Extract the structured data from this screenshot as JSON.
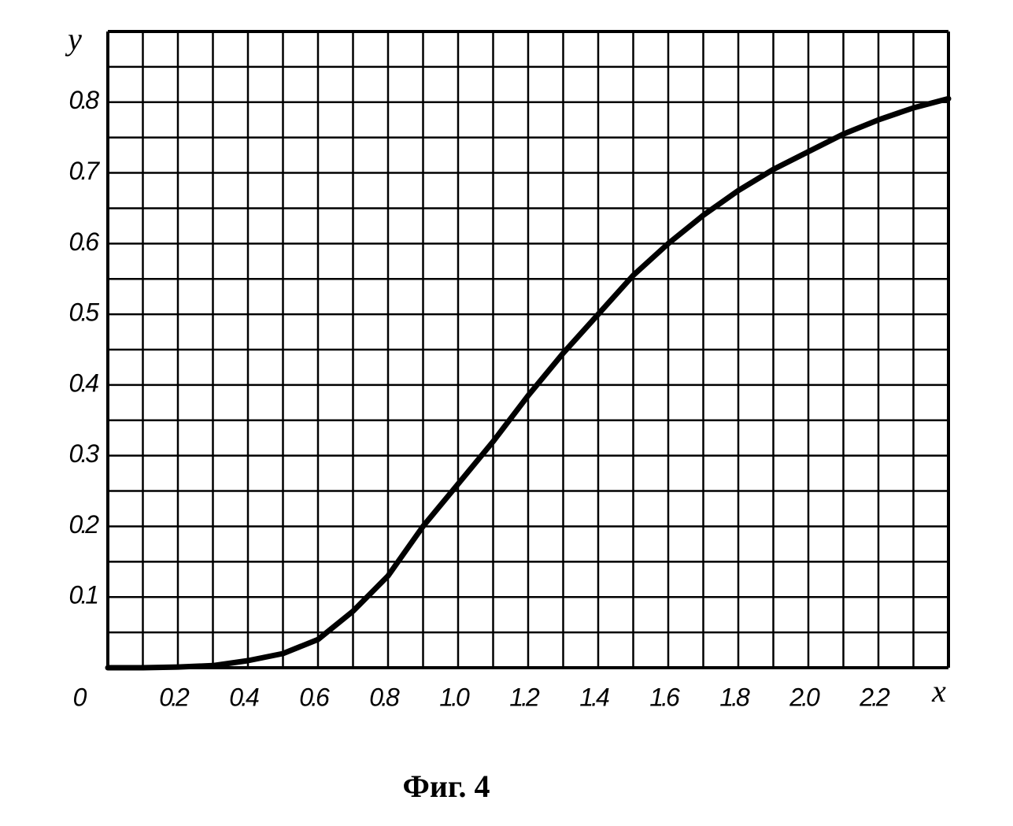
{
  "chart_data": {
    "type": "line",
    "caption": "Фиг. 4",
    "xlabel": "x",
    "ylabel": "y",
    "x": [
      0,
      0.1,
      0.2,
      0.3,
      0.4,
      0.5,
      0.6,
      0.7,
      0.8,
      0.9,
      1.0,
      1.1,
      1.2,
      1.3,
      1.4,
      1.5,
      1.6,
      1.7,
      1.8,
      1.9,
      2.0,
      2.1,
      2.2,
      2.3,
      2.4
    ],
    "y": [
      0,
      0,
      0.001,
      0.003,
      0.01,
      0.02,
      0.04,
      0.08,
      0.13,
      0.2,
      0.26,
      0.32,
      0.385,
      0.445,
      0.5,
      0.555,
      0.6,
      0.64,
      0.675,
      0.705,
      0.73,
      0.755,
      0.775,
      0.792,
      0.805
    ],
    "color": "#000000",
    "xlim": [
      0,
      2.4
    ],
    "ylim": [
      0,
      0.9
    ],
    "xticks": [
      0,
      0.2,
      0.4,
      0.6,
      0.8,
      {
        "value": 1,
        "label": "1.0"
      },
      1.2,
      1.4,
      1.6,
      1.8,
      {
        "value": 2,
        "label": "2.0"
      },
      2.2
    ],
    "yticks": [
      0.1,
      0.2,
      0.3,
      0.4,
      0.5,
      0.6,
      0.7,
      0.8
    ],
    "xgrid": [
      0,
      0.1,
      0.2,
      0.3,
      0.4,
      0.5,
      0.6,
      0.7,
      0.8,
      0.9,
      1.0,
      1.1,
      1.2,
      1.3,
      1.4,
      1.5,
      1.6,
      1.7,
      1.8,
      1.9,
      2.0,
      2.1,
      2.2,
      2.3,
      2.4
    ],
    "ygrid": [
      0,
      0.05,
      0.1,
      0.15,
      0.2,
      0.25,
      0.3,
      0.35,
      0.4,
      0.45,
      0.5,
      0.55,
      0.6,
      0.65,
      0.7,
      0.75,
      0.8,
      0.85,
      0.9
    ],
    "grid": true
  }
}
